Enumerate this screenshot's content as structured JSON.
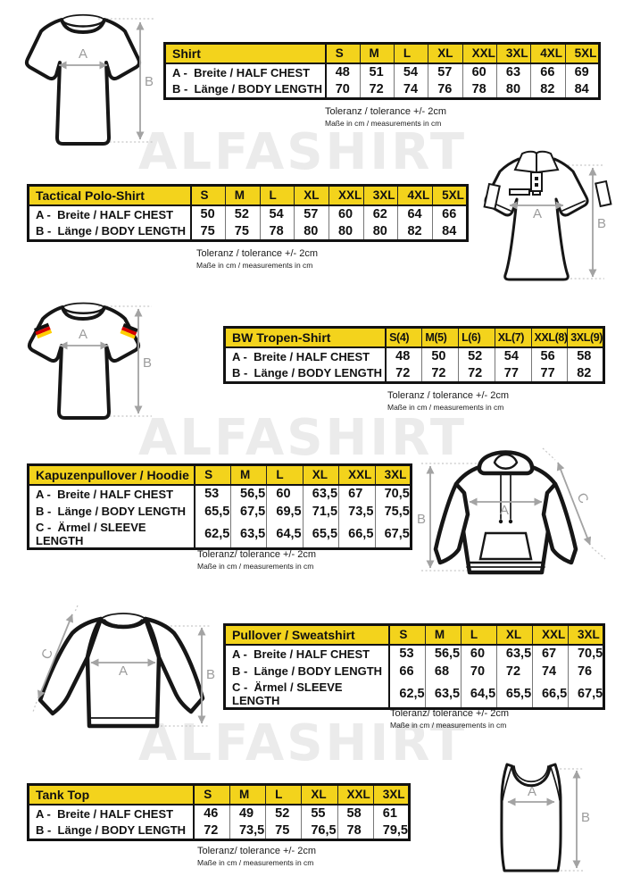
{
  "page": {
    "watermark": "ALFASHIRT",
    "colors": {
      "header_yellow": "#F3D31C",
      "line_black": "#121212",
      "arrow_gray": "#A3A3A3",
      "watermark_gray": "#EBEBEB",
      "flag_black": "#111111",
      "flag_red": "#D60000",
      "flag_gold": "#FFCE00"
    }
  },
  "sections": [
    {
      "id": "shirt",
      "title": "Shirt",
      "sizes": [
        "S",
        "M",
        "L",
        "XL",
        "XXL",
        "3XL",
        "4XL",
        "5XL"
      ],
      "rows": [
        {
          "label": "A -  Breite / HALF CHEST",
          "values": [
            "48",
            "51",
            "54",
            "57",
            "60",
            "63",
            "66",
            "69"
          ]
        },
        {
          "label": "B -  Länge / BODY LENGTH",
          "values": [
            "70",
            "72",
            "74",
            "76",
            "78",
            "80",
            "82",
            "84"
          ]
        }
      ],
      "tolerance_note": "Toleranz / tolerance +/- 2cm",
      "measure_note": "Maße in cm / measurements in cm",
      "diagram": {
        "garment": "t-shirt",
        "a": "A",
        "b": "B"
      }
    },
    {
      "id": "tactical-polo",
      "title": "Tactical Polo-Shirt",
      "sizes": [
        "S",
        "M",
        "L",
        "XL",
        "XXL",
        "3XL",
        "4XL",
        "5XL"
      ],
      "rows": [
        {
          "label": "A -  Breite / HALF CHEST",
          "values": [
            "50",
            "52",
            "54",
            "57",
            "60",
            "62",
            "64",
            "66"
          ]
        },
        {
          "label": "B -  Länge / BODY LENGTH",
          "values": [
            "75",
            "75",
            "78",
            "80",
            "80",
            "80",
            "82",
            "84"
          ]
        }
      ],
      "tolerance_note": "Toleranz / tolerance +/- 2cm",
      "measure_note": "Maße in cm / measurements in cm",
      "diagram": {
        "garment": "polo-shirt",
        "a": "A",
        "b": "B"
      }
    },
    {
      "id": "bw-tropen-shirt",
      "title": "BW Tropen-Shirt",
      "sizes": [
        "S(4)",
        "M(5)",
        "L(6)",
        "XL(7)",
        "XXL(8)",
        "3XL(9)"
      ],
      "rows": [
        {
          "label": "A -  Breite / HALF CHEST",
          "values": [
            "48",
            "50",
            "52",
            "54",
            "56",
            "58"
          ]
        },
        {
          "label": "B -  Länge / BODY LENGTH",
          "values": [
            "72",
            "72",
            "72",
            "77",
            "77",
            "82"
          ]
        }
      ],
      "tolerance_note": "Toleranz / tolerance +/- 2cm",
      "measure_note": "Maße in cm / measurements in cm",
      "diagram": {
        "garment": "t-shirt-german-flags",
        "a": "A",
        "b": "B"
      }
    },
    {
      "id": "hoodie",
      "title": "Kapuzenpullover / Hoodie",
      "sizes": [
        "S",
        "M",
        "L",
        "XL",
        "XXL",
        "3XL"
      ],
      "rows": [
        {
          "label": "A -  Breite / HALF CHEST",
          "values": [
            "53",
            "56,5",
            "60",
            "63,5",
            "67",
            "70,5"
          ]
        },
        {
          "label": "B -  Länge / BODY LENGTH",
          "values": [
            "65,5",
            "67,5",
            "69,5",
            "71,5",
            "73,5",
            "75,5"
          ]
        },
        {
          "label": "C -  Ärmel / SLEEVE LENGTH",
          "values": [
            "62,5",
            "63,5",
            "64,5",
            "65,5",
            "66,5",
            "67,5"
          ]
        }
      ],
      "tolerance_note": "Toleranz/ tolerance +/- 2cm",
      "measure_note": "Maße in cm / measurements in cm",
      "diagram": {
        "garment": "hoodie",
        "a": "A",
        "b": "B",
        "c": "C"
      }
    },
    {
      "id": "sweatshirt",
      "title": "Pullover / Sweatshirt",
      "sizes": [
        "S",
        "M",
        "L",
        "XL",
        "XXL",
        "3XL"
      ],
      "rows": [
        {
          "label": "A -  Breite / HALF CHEST",
          "values": [
            "53",
            "56,5",
            "60",
            "63,5",
            "67",
            "70,5"
          ]
        },
        {
          "label": "B -  Länge / BODY LENGTH",
          "values": [
            "66",
            "68",
            "70",
            "72",
            "74",
            "76"
          ]
        },
        {
          "label": "C -  Ärmel / SLEEVE LENGTH",
          "values": [
            "62,5",
            "63,5",
            "64,5",
            "65,5",
            "66,5",
            "67,5"
          ]
        }
      ],
      "tolerance_note": "Toleranz/ tolerance +/- 2cm",
      "measure_note": "Maße in cm / measurements in cm",
      "diagram": {
        "garment": "sweatshirt",
        "a": "A",
        "b": "B",
        "c": "C"
      }
    },
    {
      "id": "tank-top",
      "title": "Tank Top",
      "sizes": [
        "S",
        "M",
        "L",
        "XL",
        "XXL",
        "3XL"
      ],
      "rows": [
        {
          "label": "A -  Breite / HALF CHEST",
          "values": [
            "46",
            "49",
            "52",
            "55",
            "58",
            "61"
          ]
        },
        {
          "label": "B -  Länge / BODY LENGTH",
          "values": [
            "72",
            "73,5",
            "75",
            "76,5",
            "78",
            "79,5"
          ]
        }
      ],
      "tolerance_note": "Toleranz/ tolerance +/- 2cm",
      "measure_note": "Maße in cm / measurements in cm",
      "diagram": {
        "garment": "tank-top",
        "a": "A",
        "b": "B"
      }
    }
  ]
}
